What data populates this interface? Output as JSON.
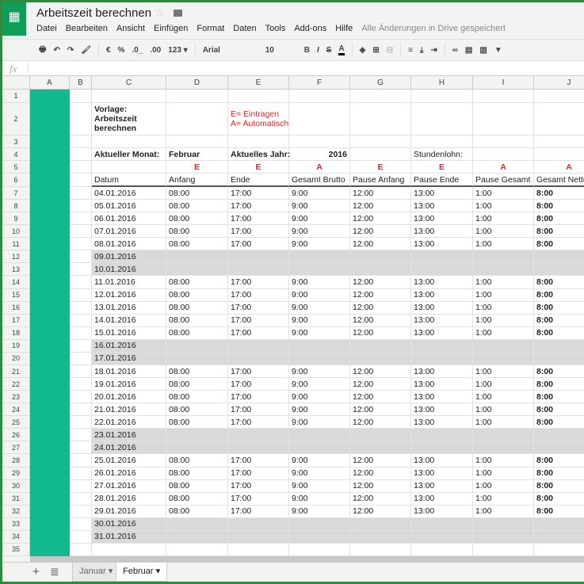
{
  "app": {
    "title": "Arbeitszeit berechnen",
    "saved_status": "Alle Änderungen in Drive gespeichert",
    "accent": "#109d58",
    "marker_color": "#12b890"
  },
  "menu": [
    "Datei",
    "Bearbeiten",
    "Ansicht",
    "Einfügen",
    "Format",
    "Daten",
    "Tools",
    "Add-ons",
    "Hilfe"
  ],
  "toolbar": {
    "currency": "€",
    "percent": "%",
    "dec_less": ".0_",
    "dec_more": ".00",
    "format": "123 ▾",
    "font": "Arial",
    "font_size": "10",
    "bold": "B",
    "italic": "I",
    "strike": "S",
    "text_color": "A"
  },
  "columns": [
    "A",
    "B",
    "C",
    "D",
    "E",
    "F",
    "G",
    "H",
    "I",
    "J"
  ],
  "sheet": {
    "vorlage": "Vorlage:\nArbeitszeit\nberechnen",
    "legend_e": "E= Eintragen",
    "legend_a": "A= Automatisch",
    "month_label": "Aktueller Monat:",
    "month": "Februar",
    "year_label": "Aktuelles Jahr:",
    "year": "2016",
    "wage_label": "Stundenlohn:",
    "markers": [
      "E",
      "E",
      "A",
      "E",
      "E",
      "A",
      "A"
    ],
    "headers": [
      "Datum",
      "Anfang",
      "Ende",
      "Gesamt Brutto",
      "Pause Anfang",
      "Pause Ende",
      "Pause Gesamt",
      "Gesamt Netto"
    ],
    "work_values": [
      "08:00",
      "17:00",
      "9:00",
      "12:00",
      "13:00",
      "1:00",
      "8:00"
    ],
    "rows": [
      [
        "04.01.2016",
        true
      ],
      [
        "05.01.2016",
        true
      ],
      [
        "06.01.2016",
        true
      ],
      [
        "07.01.2016",
        true
      ],
      [
        "08.01.2016",
        true
      ],
      [
        "09.01.2016",
        false
      ],
      [
        "10.01.2016",
        false
      ],
      [
        "11.01.2016",
        true
      ],
      [
        "12.01.2016",
        true
      ],
      [
        "13.01.2016",
        true
      ],
      [
        "14.01.2016",
        true
      ],
      [
        "15.01.2016",
        true
      ],
      [
        "16.01.2016",
        false
      ],
      [
        "17.01.2016",
        false
      ],
      [
        "18.01.2016",
        true
      ],
      [
        "19.01.2016",
        true
      ],
      [
        "20.01.2016",
        true
      ],
      [
        "21.01.2016",
        true
      ],
      [
        "22.01.2016",
        true
      ],
      [
        "23.01.2016",
        false
      ],
      [
        "24.01.2016",
        false
      ],
      [
        "25.01.2016",
        true
      ],
      [
        "26.01.2016",
        true
      ],
      [
        "27.01.2016",
        true
      ],
      [
        "28.01.2016",
        true
      ],
      [
        "29.01.2016",
        true
      ],
      [
        "30.01.2016",
        false
      ],
      [
        "31.01.2016",
        false
      ]
    ]
  },
  "tabs": [
    {
      "label": "Januar ▾",
      "active": false
    },
    {
      "label": "Februar ▾",
      "active": true
    }
  ]
}
